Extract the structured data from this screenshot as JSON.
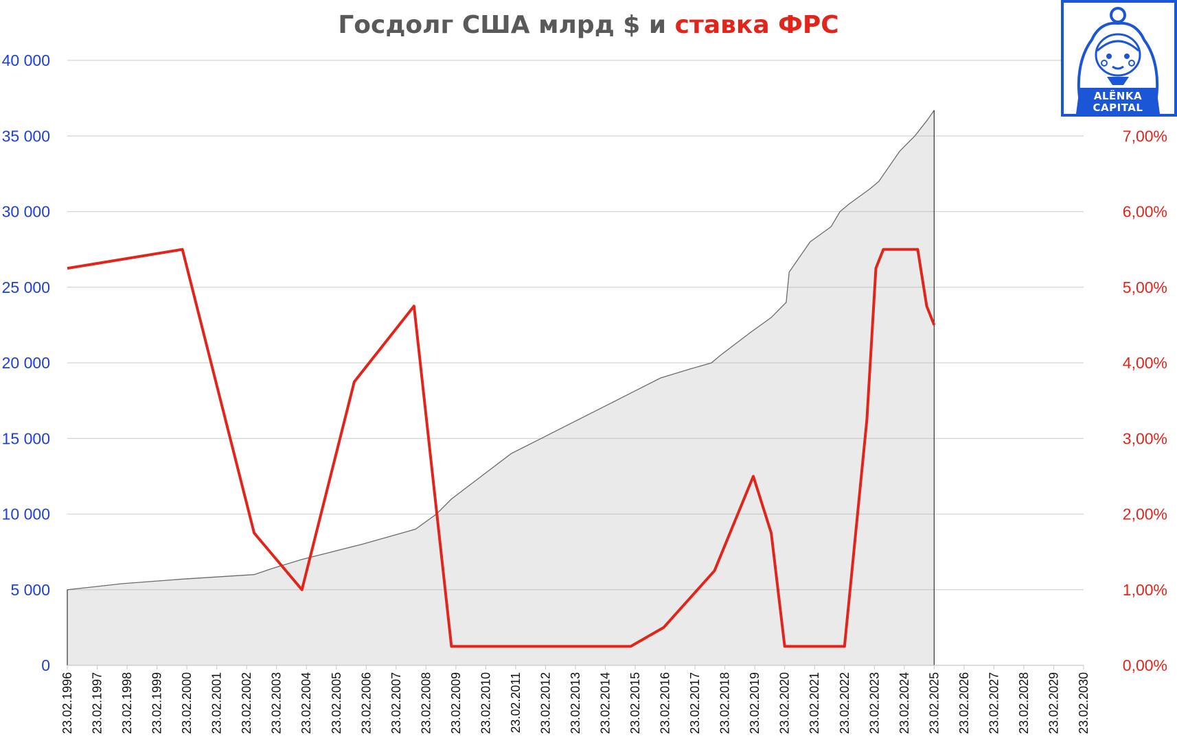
{
  "chart_data": {
    "type": "area+line",
    "title_parts": [
      {
        "text": "Госдолг США млрд $ и ",
        "color": "#595959"
      },
      {
        "text": "ставка ФРС",
        "color": "#e1251b"
      }
    ],
    "x_tick_labels": [
      "23.02.1996",
      "23.02.1997",
      "23.02.1998",
      "23.02.1999",
      "23.02.2000",
      "23.02.2001",
      "23.02.2002",
      "23.02.2003",
      "23.02.2004",
      "23.02.2005",
      "23.02.2006",
      "23.02.2007",
      "23.02.2008",
      "23.02.2009",
      "23.02.2010",
      "23.02.2011",
      "23.02.2012",
      "23.02.2013",
      "23.02.2014",
      "23.02.2015",
      "23.02.2016",
      "23.02.2017",
      "23.02.2018",
      "23.02.2019",
      "23.02.2020",
      "23.02.2021",
      "23.02.2022",
      "23.02.2023",
      "23.02.2024",
      "23.02.2025",
      "23.02.2026",
      "23.02.2027",
      "23.02.2028",
      "23.02.2029",
      "23.02.2030"
    ],
    "xlim": [
      1996.15,
      2030.15
    ],
    "y_left": {
      "ticks": [
        "0",
        "5 000",
        "10 000",
        "15 000",
        "20 000",
        "25 000",
        "30 000",
        "35 000",
        "40 000"
      ],
      "lim": [
        0,
        40000
      ],
      "color": "#1e3fd6"
    },
    "y_right": {
      "ticks": [
        "0,00%",
        "1,00%",
        "2,00%",
        "3,00%",
        "4,00%",
        "5,00%",
        "6,00%",
        "7,00%"
      ],
      "lim": [
        0,
        8
      ],
      "color": "#e1251b"
    },
    "series": [
      {
        "axis": "left",
        "kind": "area",
        "color": "#6b6b6b",
        "x": [
          1996.15,
          1998,
          2000,
          2002.4,
          2003,
          2004,
          2005,
          2006,
          2007.8,
          2008.5,
          2009,
          2010,
          2011,
          2012,
          2013,
          2014,
          2015,
          2016,
          2017,
          2017.7,
          2018,
          2019,
          2019.7,
          2020.2,
          2020.3,
          2021,
          2021.7,
          2022.0,
          2022.3,
          2023,
          2023.3,
          2024,
          2024.5,
          2024.9,
          2025.15
        ],
        "y": [
          5000,
          5400,
          5700,
          6000,
          6400,
          7000,
          7500,
          8000,
          9000,
          10000,
          11000,
          12500,
          14000,
          15000,
          16000,
          17000,
          18000,
          19000,
          19600,
          20000,
          20500,
          22000,
          23000,
          24000,
          26000,
          28000,
          29000,
          30000,
          30500,
          31500,
          32000,
          34000,
          35000,
          36000,
          36700
        ]
      },
      {
        "axis": "right",
        "kind": "line",
        "color": "#e1251b",
        "x": [
          1996.15,
          2000.0,
          2002.4,
          2004.0,
          2005.75,
          2007.75,
          2009.0,
          2015.0,
          2016.1,
          2017.8,
          2019.1,
          2019.7,
          2020.15,
          2022.15,
          2022.9,
          2023.2,
          2023.45,
          2024.6,
          2024.9,
          2025.15
        ],
        "y": [
          5.25,
          5.5,
          1.75,
          1.0,
          3.75,
          4.75,
          0.25,
          0.25,
          0.5,
          1.25,
          2.5,
          1.75,
          0.25,
          0.25,
          3.25,
          5.25,
          5.5,
          5.5,
          4.75,
          4.5
        ]
      }
    ],
    "grid": "horizontal",
    "legend": "none"
  },
  "logo": {
    "line1": "ALЁNKA",
    "line2": "CAPITAL",
    "color": "#1a56d6",
    "icon": "matryoshka-doll-icon"
  }
}
